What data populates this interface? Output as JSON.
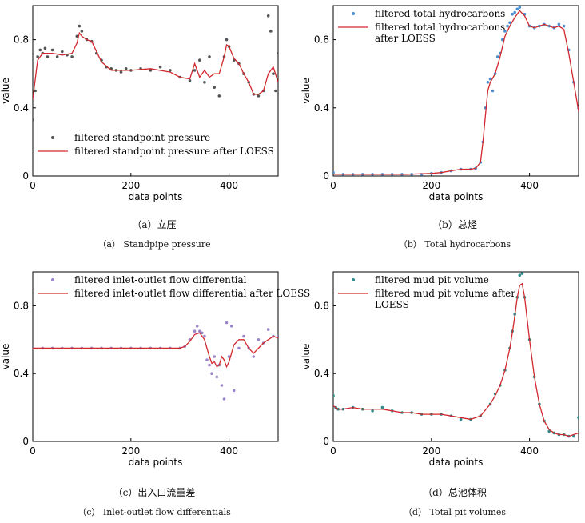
{
  "colors": {
    "line": "#d0282e",
    "axis": "#000000",
    "scatter_dark": "#555555",
    "scatter_blue": "#4a8fd1",
    "scatter_purple": "#9a86c8",
    "scatter_teal": "#2f8a8a"
  },
  "captions": [
    {
      "cn": "（a）立压",
      "en": "（a） Standpipe pressure"
    },
    {
      "cn": "（b）总烃",
      "en": "（b） Total hydrocarbons"
    },
    {
      "cn": "（c）出入口流量差",
      "en": "（c） Inlet-outlet flow differentials"
    },
    {
      "cn": "（d）总池体积",
      "en": "（d） Total pit volumes"
    }
  ],
  "chart_data": [
    {
      "type": "scatter",
      "xlabel": "data points",
      "ylabel": "value",
      "xlim": [
        0,
        500
      ],
      "ylim": [
        0,
        1.0
      ],
      "xticks": [
        "0",
        "200",
        "400"
      ],
      "yticks": [
        "0",
        "0.4",
        "0.8"
      ],
      "legend_position": "bottom-right",
      "series": [
        {
          "name": "filtered standpoint pressure",
          "kind": "scatter",
          "color": "scatter_dark",
          "x": [
            0,
            5,
            10,
            15,
            20,
            25,
            30,
            40,
            50,
            60,
            70,
            80,
            90,
            95,
            100,
            110,
            120,
            130,
            140,
            150,
            160,
            170,
            180,
            190,
            200,
            220,
            240,
            260,
            280,
            300,
            320,
            330,
            340,
            350,
            360,
            370,
            380,
            390,
            395,
            400,
            410,
            420,
            430,
            440,
            450,
            460,
            470,
            480,
            485,
            490,
            495,
            500
          ],
          "y": [
            0.33,
            0.5,
            0.7,
            0.74,
            0.72,
            0.75,
            0.7,
            0.74,
            0.7,
            0.73,
            0.71,
            0.7,
            0.82,
            0.88,
            0.85,
            0.8,
            0.79,
            0.72,
            0.68,
            0.64,
            0.63,
            0.62,
            0.61,
            0.63,
            0.62,
            0.63,
            0.62,
            0.64,
            0.62,
            0.58,
            0.56,
            0.62,
            0.68,
            0.55,
            0.7,
            0.52,
            0.47,
            0.7,
            0.8,
            0.76,
            0.68,
            0.66,
            0.6,
            0.55,
            0.48,
            0.47,
            0.5,
            0.94,
            0.85,
            0.6,
            0.5,
            0.72
          ]
        },
        {
          "name": "filtered standpoint pressure after LOESS",
          "kind": "line",
          "color": "line",
          "x": [
            0,
            10,
            20,
            40,
            60,
            80,
            90,
            95,
            100,
            110,
            120,
            140,
            160,
            180,
            200,
            240,
            280,
            300,
            320,
            330,
            340,
            350,
            360,
            370,
            380,
            390,
            395,
            400,
            410,
            420,
            430,
            440,
            450,
            460,
            470,
            480,
            490,
            500
          ],
          "y": [
            0.45,
            0.68,
            0.72,
            0.72,
            0.71,
            0.72,
            0.78,
            0.84,
            0.82,
            0.8,
            0.79,
            0.67,
            0.62,
            0.62,
            0.62,
            0.63,
            0.61,
            0.58,
            0.57,
            0.66,
            0.58,
            0.62,
            0.58,
            0.6,
            0.6,
            0.7,
            0.77,
            0.76,
            0.69,
            0.66,
            0.6,
            0.55,
            0.48,
            0.48,
            0.5,
            0.6,
            0.64,
            0.55
          ]
        }
      ]
    },
    {
      "type": "scatter",
      "xlabel": "data points",
      "ylabel": "value",
      "xlim": [
        0,
        500
      ],
      "ylim": [
        0,
        1.0
      ],
      "xticks": [
        "0",
        "200",
        "400"
      ],
      "yticks": [
        "0",
        "0.4",
        "0.8"
      ],
      "legend_position": "top-left",
      "series": [
        {
          "name": "filtered total hydrocarbons",
          "kind": "scatter",
          "color": "scatter_blue",
          "x": [
            0,
            20,
            40,
            60,
            80,
            100,
            120,
            140,
            160,
            180,
            200,
            220,
            240,
            260,
            280,
            290,
            300,
            305,
            310,
            315,
            320,
            325,
            330,
            335,
            340,
            345,
            350,
            355,
            360,
            365,
            370,
            375,
            380,
            390,
            400,
            410,
            420,
            430,
            440,
            450,
            460,
            470,
            480,
            490,
            500
          ],
          "y": [
            0.02,
            0.01,
            0.01,
            0.01,
            0.01,
            0.01,
            0.01,
            0.01,
            0.01,
            0.01,
            0.015,
            0.02,
            0.03,
            0.04,
            0.04,
            0.045,
            0.08,
            0.2,
            0.4,
            0.55,
            0.57,
            0.5,
            0.6,
            0.7,
            0.72,
            0.8,
            0.85,
            0.88,
            0.9,
            0.95,
            0.96,
            0.98,
            0.99,
            0.95,
            0.88,
            0.87,
            0.88,
            0.89,
            0.88,
            0.87,
            0.89,
            0.88,
            0.74,
            0.55,
            0.4
          ]
        },
        {
          "name": "filtered total hydrocarbons after LOESS",
          "kind": "line",
          "color": "line",
          "x": [
            0,
            50,
            100,
            150,
            200,
            220,
            240,
            260,
            280,
            290,
            300,
            305,
            310,
            315,
            320,
            330,
            340,
            350,
            360,
            370,
            380,
            390,
            400,
            410,
            420,
            430,
            440,
            450,
            460,
            470,
            480,
            490,
            500
          ],
          "y": [
            0.01,
            0.01,
            0.01,
            0.01,
            0.015,
            0.02,
            0.03,
            0.04,
            0.04,
            0.045,
            0.08,
            0.2,
            0.35,
            0.5,
            0.55,
            0.6,
            0.7,
            0.82,
            0.88,
            0.93,
            0.97,
            0.94,
            0.88,
            0.87,
            0.88,
            0.89,
            0.88,
            0.87,
            0.88,
            0.86,
            0.72,
            0.55,
            0.38
          ]
        }
      ]
    },
    {
      "type": "scatter",
      "xlabel": "data points",
      "ylabel": "value",
      "xlim": [
        0,
        500
      ],
      "ylim": [
        0,
        1.0
      ],
      "xticks": [
        "0",
        "200",
        "400"
      ],
      "yticks": [
        "0",
        "0.4",
        "0.8"
      ],
      "legend_position": "top-left",
      "series": [
        {
          "name": "filtered inlet-outlet flow differential",
          "kind": "scatter",
          "color": "scatter_purple",
          "x": [
            0,
            20,
            40,
            60,
            80,
            100,
            120,
            140,
            160,
            180,
            200,
            220,
            240,
            260,
            280,
            300,
            310,
            320,
            330,
            335,
            340,
            345,
            350,
            355,
            360,
            365,
            370,
            375,
            380,
            385,
            390,
            395,
            400,
            405,
            410,
            420,
            430,
            440,
            450,
            460,
            470,
            480,
            490,
            500
          ],
          "y": [
            0.55,
            0.55,
            0.55,
            0.55,
            0.55,
            0.55,
            0.55,
            0.55,
            0.55,
            0.55,
            0.55,
            0.55,
            0.55,
            0.55,
            0.55,
            0.55,
            0.56,
            0.6,
            0.65,
            0.68,
            0.65,
            0.64,
            0.62,
            0.48,
            0.45,
            0.4,
            0.5,
            0.38,
            0.45,
            0.33,
            0.25,
            0.7,
            0.5,
            0.68,
            0.3,
            0.55,
            0.62,
            0.55,
            0.5,
            0.6,
            0.58,
            0.66,
            0.62,
            0.62
          ]
        },
        {
          "name": "filtered inlet-outlet flow differential after LOESS",
          "kind": "line",
          "color": "line",
          "x": [
            0,
            50,
            100,
            150,
            200,
            250,
            300,
            310,
            320,
            330,
            340,
            350,
            360,
            365,
            370,
            375,
            380,
            385,
            390,
            395,
            400,
            410,
            420,
            430,
            440,
            450,
            460,
            470,
            480,
            490,
            500
          ],
          "y": [
            0.55,
            0.55,
            0.55,
            0.55,
            0.55,
            0.55,
            0.55,
            0.56,
            0.59,
            0.63,
            0.64,
            0.6,
            0.5,
            0.46,
            0.47,
            0.44,
            0.45,
            0.5,
            0.48,
            0.44,
            0.47,
            0.57,
            0.6,
            0.6,
            0.55,
            0.52,
            0.55,
            0.58,
            0.6,
            0.62,
            0.61
          ]
        }
      ]
    },
    {
      "type": "scatter",
      "xlabel": "data points",
      "ylabel": "value",
      "xlim": [
        0,
        500
      ],
      "ylim": [
        0,
        1.0
      ],
      "xticks": [
        "0",
        "200",
        "400"
      ],
      "yticks": [
        "0",
        "0.4",
        "0.8"
      ],
      "legend_position": "top-left",
      "series": [
        {
          "name": "filtered mud pit volume",
          "kind": "scatter",
          "color": "scatter_teal",
          "x": [
            0,
            5,
            10,
            20,
            40,
            60,
            80,
            100,
            120,
            140,
            160,
            180,
            200,
            220,
            240,
            260,
            280,
            300,
            320,
            330,
            340,
            350,
            360,
            365,
            370,
            375,
            380,
            385,
            390,
            400,
            410,
            420,
            430,
            440,
            450,
            460,
            470,
            480,
            490,
            500
          ],
          "y": [
            0.27,
            0.2,
            0.19,
            0.19,
            0.2,
            0.19,
            0.18,
            0.2,
            0.18,
            0.17,
            0.17,
            0.16,
            0.16,
            0.16,
            0.15,
            0.13,
            0.13,
            0.15,
            0.22,
            0.28,
            0.33,
            0.42,
            0.55,
            0.65,
            0.75,
            0.85,
            0.98,
            0.99,
            0.85,
            0.6,
            0.38,
            0.22,
            0.12,
            0.06,
            0.05,
            0.04,
            0.04,
            0.03,
            0.03,
            0.14
          ]
        },
        {
          "name": "filtered mud pit volume after LOESS",
          "kind": "line",
          "color": "line",
          "x": [
            0,
            10,
            20,
            40,
            60,
            80,
            100,
            120,
            140,
            160,
            180,
            200,
            220,
            240,
            260,
            280,
            300,
            320,
            330,
            340,
            350,
            360,
            365,
            370,
            375,
            380,
            385,
            390,
            400,
            410,
            420,
            430,
            440,
            450,
            460,
            470,
            480,
            490,
            500
          ],
          "y": [
            0.21,
            0.19,
            0.19,
            0.2,
            0.19,
            0.19,
            0.19,
            0.18,
            0.17,
            0.17,
            0.16,
            0.16,
            0.16,
            0.15,
            0.14,
            0.13,
            0.15,
            0.22,
            0.27,
            0.33,
            0.42,
            0.55,
            0.64,
            0.74,
            0.85,
            0.92,
            0.93,
            0.85,
            0.6,
            0.38,
            0.22,
            0.12,
            0.07,
            0.05,
            0.04,
            0.04,
            0.03,
            0.04,
            0.05
          ]
        }
      ]
    }
  ]
}
